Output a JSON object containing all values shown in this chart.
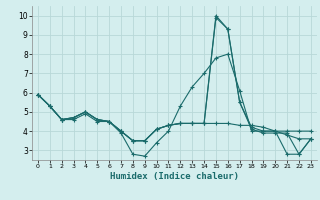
{
  "xlabel": "Humidex (Indice chaleur)",
  "ylabel": "",
  "bg_color": "#d4eeee",
  "grid_color": "#b8d8d8",
  "line_color": "#1a6b6b",
  "xlim": [
    -0.5,
    23.5
  ],
  "ylim": [
    2.5,
    10.5
  ],
  "yticks": [
    3,
    4,
    5,
    6,
    7,
    8,
    9,
    10
  ],
  "xticks": [
    0,
    1,
    2,
    3,
    4,
    5,
    6,
    7,
    8,
    9,
    10,
    11,
    12,
    13,
    14,
    15,
    16,
    17,
    18,
    19,
    20,
    21,
    22,
    23
  ],
  "series": [
    [
      5.9,
      5.3,
      4.6,
      4.6,
      4.9,
      4.5,
      4.5,
      3.9,
      2.8,
      2.7,
      3.4,
      4.0,
      5.3,
      6.3,
      7.0,
      7.8,
      8.0,
      6.1,
      4.0,
      4.0,
      4.0,
      4.0,
      4.0,
      4.0
    ],
    [
      5.9,
      5.3,
      4.6,
      4.7,
      5.0,
      4.6,
      4.5,
      4.0,
      3.5,
      3.5,
      4.1,
      4.3,
      4.4,
      4.4,
      4.4,
      9.9,
      9.3,
      5.5,
      4.1,
      3.9,
      3.9,
      3.9,
      2.8,
      3.6
    ],
    [
      5.9,
      5.3,
      4.6,
      4.7,
      5.0,
      4.6,
      4.5,
      4.0,
      3.5,
      3.5,
      4.1,
      4.3,
      4.4,
      4.4,
      4.4,
      10.0,
      9.3,
      5.5,
      4.2,
      4.0,
      4.0,
      2.8,
      2.8,
      3.6
    ],
    [
      5.9,
      5.3,
      4.6,
      4.7,
      5.0,
      4.6,
      4.5,
      4.0,
      3.5,
      3.5,
      4.1,
      4.3,
      4.4,
      4.4,
      4.4,
      4.4,
      4.4,
      4.3,
      4.3,
      4.2,
      4.0,
      3.8,
      3.6,
      3.6
    ]
  ]
}
